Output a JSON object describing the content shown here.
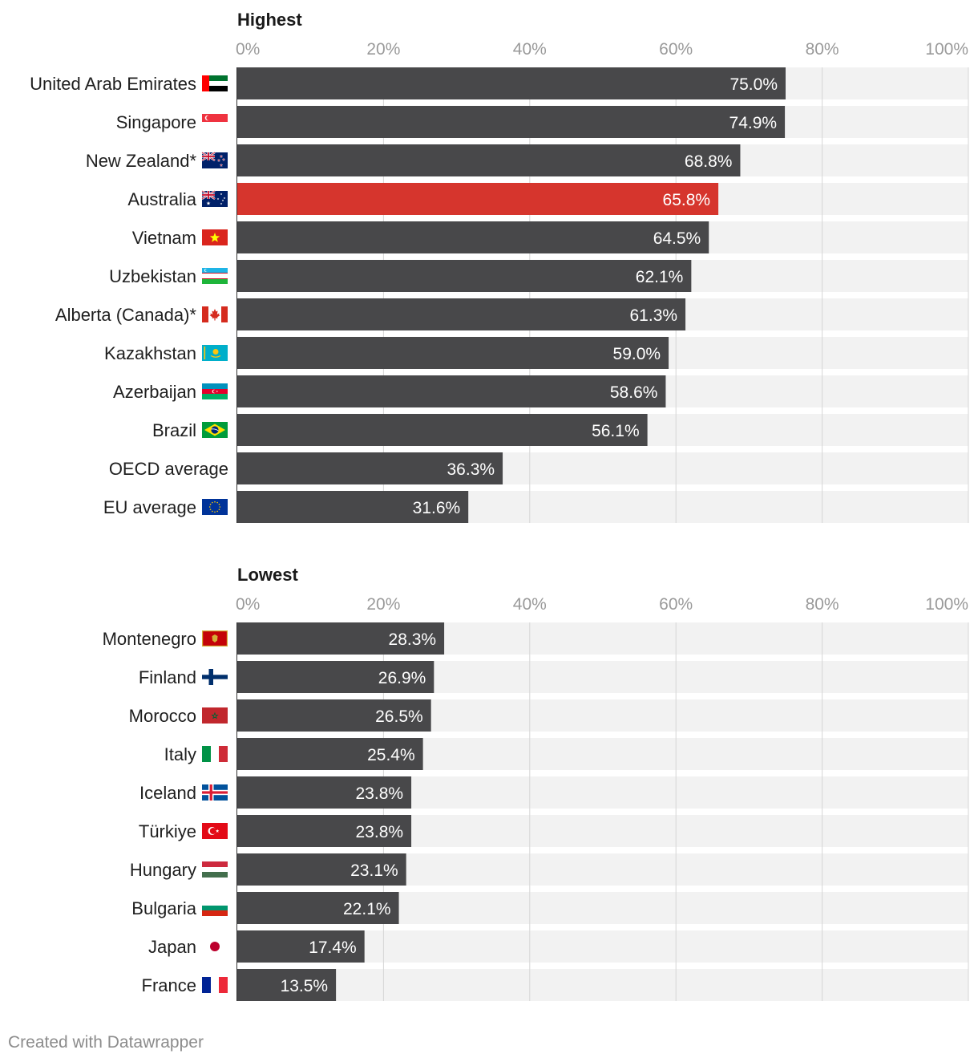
{
  "chart_data": [
    {
      "type": "bar",
      "orientation": "horizontal",
      "title": "Highest",
      "xlim": [
        0,
        100
      ],
      "ticks": [
        "0%",
        "20%",
        "40%",
        "60%",
        "80%",
        "100%"
      ],
      "tick_values": [
        0,
        20,
        40,
        60,
        80,
        100
      ],
      "categories": [
        "United Arab Emirates",
        "Singapore",
        "New Zealand*",
        "Australia",
        "Vietnam",
        "Uzbekistan",
        "Alberta (Canada)*",
        "Kazakhstan",
        "Azerbaijan",
        "Brazil",
        "OECD average",
        "EU average"
      ],
      "values": [
        75.0,
        74.9,
        68.8,
        65.8,
        64.5,
        62.1,
        61.3,
        59.0,
        58.6,
        56.1,
        36.3,
        31.6
      ],
      "labels": [
        "75.0%",
        "74.9%",
        "68.8%",
        "65.8%",
        "64.5%",
        "62.1%",
        "61.3%",
        "59.0%",
        "58.6%",
        "56.1%",
        "36.3%",
        "31.6%"
      ],
      "flags": [
        "uae",
        "singapore",
        "nz",
        "australia",
        "vietnam",
        "uzbekistan",
        "canada",
        "kazakhstan",
        "azerbaijan",
        "brazil",
        "",
        "eu"
      ],
      "highlight": [
        "",
        "",
        "",
        "#d6352d",
        "",
        "",
        "",
        "",
        "",
        "",
        "",
        ""
      ]
    },
    {
      "type": "bar",
      "orientation": "horizontal",
      "title": "Lowest",
      "xlim": [
        0,
        100
      ],
      "ticks": [
        "0%",
        "20%",
        "40%",
        "60%",
        "80%",
        "100%"
      ],
      "tick_values": [
        0,
        20,
        40,
        60,
        80,
        100
      ],
      "categories": [
        "Montenegro",
        "Finland",
        "Morocco",
        "Italy",
        "Iceland",
        "Türkiye",
        "Hungary",
        "Bulgaria",
        "Japan",
        "France"
      ],
      "values": [
        28.3,
        26.9,
        26.5,
        25.4,
        23.8,
        23.8,
        23.1,
        22.1,
        17.4,
        13.5
      ],
      "labels": [
        "28.3%",
        "26.9%",
        "26.5%",
        "25.4%",
        "23.8%",
        "23.8%",
        "23.1%",
        "22.1%",
        "17.4%",
        "13.5%"
      ],
      "flags": [
        "montenegro",
        "finland",
        "morocco",
        "italy",
        "iceland",
        "turkiye",
        "hungary",
        "bulgaria",
        "japan",
        "france"
      ],
      "highlight": [
        "",
        "",
        "",
        "",
        "",
        "",
        "",
        "",
        "",
        ""
      ]
    }
  ],
  "colors": {
    "bar": "#48484a",
    "highlight": "#d6352d",
    "track": "#f2f2f2",
    "grid": "#d6d6d6",
    "tick": "#9a9a9a",
    "label": "#1f1f1f",
    "title": "#1a1a1a"
  },
  "footer": "Created with Datawrapper"
}
